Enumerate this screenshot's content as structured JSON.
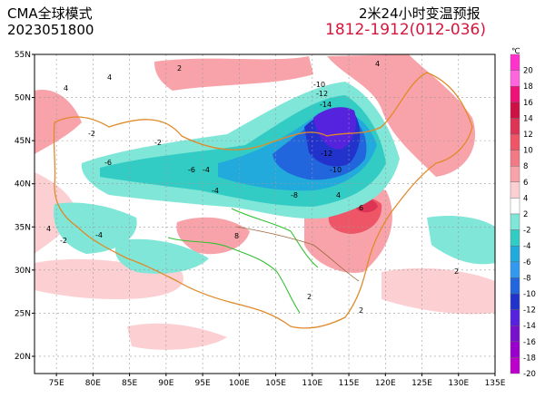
{
  "header": {
    "model": "CMA全球模式",
    "init_time": "2023051800",
    "product": "2米24小时变温预报",
    "valid_range": "1812-1912(012-036)"
  },
  "map": {
    "lat_ticks": [
      "55N",
      "50N",
      "45N",
      "40N",
      "35N",
      "30N",
      "25N",
      "20N"
    ],
    "lon_ticks": [
      "75E",
      "80E",
      "85E",
      "90E",
      "95E",
      "100E",
      "105E",
      "110E",
      "115E",
      "120E",
      "125E",
      "130E",
      "135E"
    ],
    "contour_labels": [
      "-2",
      "-4",
      "-6",
      "-8",
      "-10",
      "-12",
      "-14",
      "2",
      "4",
      "6",
      "8"
    ]
  },
  "colorbar": {
    "unit": "℃",
    "levels": [
      "20",
      "18",
      "16",
      "14",
      "12",
      "10",
      "8",
      "6",
      "4",
      "2",
      "-2",
      "-4",
      "-6",
      "-8",
      "-10",
      "-12",
      "-14",
      "-16",
      "-18",
      "-20"
    ],
    "colors": [
      "#ff33cc",
      "#ff66dd",
      "#ee1177",
      "#cc1144",
      "#dd3355",
      "#ee5566",
      "#f27a85",
      "#f8a3aa",
      "#fcd0d3",
      "#ffffff",
      "#7fe6d8",
      "#33ccc4",
      "#22aadd",
      "#3399ee",
      "#2266dd",
      "#2233cc",
      "#5522dd",
      "#7711cc",
      "#9900cc",
      "#bb00cc"
    ]
  }
}
